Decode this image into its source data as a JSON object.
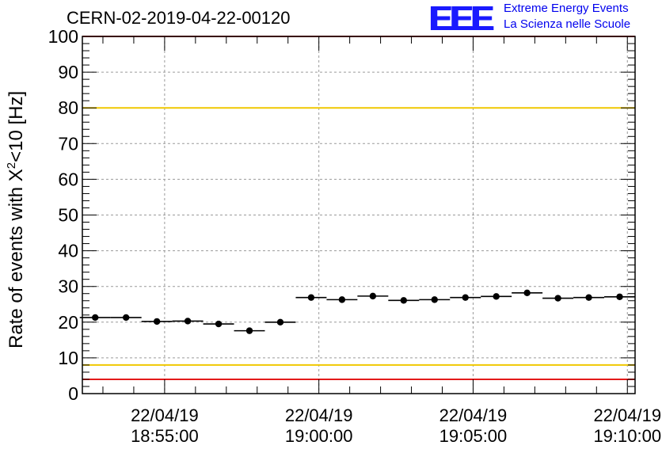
{
  "chart_data": {
    "type": "scatter",
    "title": "CERN-02-2019-04-22-00120",
    "ylabel_prefix": "Rate of events with X",
    "ylabel_sup": "2",
    "ylabel_suffix": "<10 [Hz]",
    "ylim": [
      0,
      100
    ],
    "yticks": [
      "0",
      "10",
      "20",
      "30",
      "40",
      "50",
      "60",
      "70",
      "80",
      "90",
      "100"
    ],
    "xlim": [
      "22/04/19 18:52:20",
      "22/04/19 19:10:15"
    ],
    "xticks": [
      {
        "date": "22/04/19",
        "time": "18:55:00"
      },
      {
        "date": "22/04/19",
        "time": "19:00:00"
      },
      {
        "date": "22/04/19",
        "time": "19:05:00"
      },
      {
        "date": "22/04/19",
        "time": "19:10:00"
      }
    ],
    "grid": true,
    "reference_lines": [
      {
        "y": 4,
        "color": "#e31a1a"
      },
      {
        "y": 8,
        "color": "#f0c800"
      },
      {
        "y": 80,
        "color": "#f0c800"
      },
      {
        "y": 100,
        "color": "#e31a1a"
      }
    ],
    "points": [
      {
        "t": "18:52:45",
        "y": 21.3
      },
      {
        "t": "18:53:45",
        "y": 21.3
      },
      {
        "t": "18:54:45",
        "y": 20.2
      },
      {
        "t": "18:55:45",
        "y": 20.3
      },
      {
        "t": "18:56:45",
        "y": 19.5
      },
      {
        "t": "18:57:45",
        "y": 17.6
      },
      {
        "t": "18:58:45",
        "y": 20.0
      },
      {
        "t": "18:59:45",
        "y": 26.9
      },
      {
        "t": "19:00:45",
        "y": 26.3
      },
      {
        "t": "19:01:45",
        "y": 27.3
      },
      {
        "t": "19:02:45",
        "y": 26.1
      },
      {
        "t": "19:03:45",
        "y": 26.3
      },
      {
        "t": "19:04:45",
        "y": 26.9
      },
      {
        "t": "19:05:45",
        "y": 27.2
      },
      {
        "t": "19:06:45",
        "y": 28.2
      },
      {
        "t": "19:07:45",
        "y": 26.7
      },
      {
        "t": "19:08:45",
        "y": 26.9
      },
      {
        "t": "19:09:45",
        "y": 27.1
      }
    ],
    "bin_width": "60 s"
  },
  "logo": {
    "mark": "EEE",
    "line1": "Extreme Energy Events",
    "line2": "La Scienza nelle Scuole",
    "color": "#1a1aff"
  }
}
